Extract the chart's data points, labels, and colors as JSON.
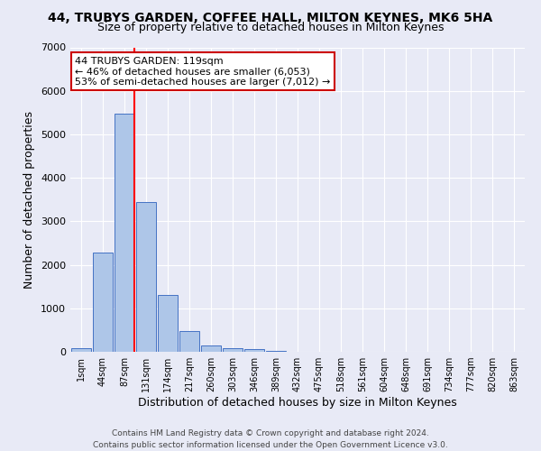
{
  "title_line1": "44, TRUBYS GARDEN, COFFEE HALL, MILTON KEYNES, MK6 5HA",
  "title_line2": "Size of property relative to detached houses in Milton Keynes",
  "xlabel": "Distribution of detached houses by size in Milton Keynes",
  "ylabel": "Number of detached properties",
  "categories": [
    "1sqm",
    "44sqm",
    "87sqm",
    "131sqm",
    "174sqm",
    "217sqm",
    "260sqm",
    "303sqm",
    "346sqm",
    "389sqm",
    "432sqm",
    "475sqm",
    "518sqm",
    "561sqm",
    "604sqm",
    "648sqm",
    "691sqm",
    "734sqm",
    "777sqm",
    "820sqm",
    "863sqm"
  ],
  "values": [
    80,
    2280,
    5480,
    3450,
    1310,
    470,
    155,
    90,
    55,
    25,
    0,
    0,
    0,
    0,
    0,
    0,
    0,
    0,
    0,
    0,
    0
  ],
  "bar_color": "#aec6e8",
  "bar_edge_color": "#4472c4",
  "background_color": "#e8eaf6",
  "grid_color": "#ffffff",
  "red_line_x": 2.45,
  "ylim": [
    0,
    7000
  ],
  "yticks": [
    0,
    1000,
    2000,
    3000,
    4000,
    5000,
    6000,
    7000
  ],
  "annotation_line1": "44 TRUBYS GARDEN: 119sqm",
  "annotation_line2": "← 46% of detached houses are smaller (6,053)",
  "annotation_line3": "53% of semi-detached houses are larger (7,012) →",
  "annotation_box_facecolor": "#ffffff",
  "annotation_box_edgecolor": "#cc0000",
  "footer_line1": "Contains HM Land Registry data © Crown copyright and database right 2024.",
  "footer_line2": "Contains public sector information licensed under the Open Government Licence v3.0.",
  "title1_fontsize": 10,
  "title2_fontsize": 9,
  "ylabel_fontsize": 9,
  "xlabel_fontsize": 9,
  "tick_fontsize": 7,
  "annot_fontsize": 8,
  "footer_fontsize": 6.5
}
